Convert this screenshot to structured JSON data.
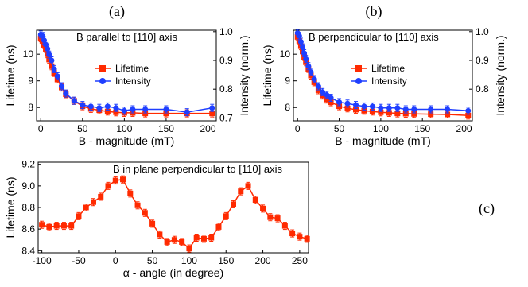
{
  "colors": {
    "lifetime": "#ff2a00",
    "intensity": "#1f3fff",
    "axis": "#000000"
  },
  "chart_data": [
    {
      "id": "a",
      "panel_label": "(a)",
      "type": "line",
      "annotation": "B parallel to [110] axis",
      "xlabel": "B - magnitude (mT)",
      "ylabel": "Lifetime (ns)",
      "y2label": "Intensity (norm.)",
      "xlim": [
        -5,
        210
      ],
      "ylim": [
        7.5,
        10.9
      ],
      "y2lim": [
        0.69,
        1.005
      ],
      "xticks": [
        0,
        50,
        100,
        150,
        200
      ],
      "yticks": [
        8,
        9,
        10
      ],
      "y2ticks": [
        0.7,
        0.8,
        0.9,
        1.0
      ],
      "y2ticklabels": [
        "0.7",
        "0.8",
        "0.9",
        "1.0"
      ],
      "legend": [
        "Lifetime",
        "Intensity"
      ],
      "series": [
        {
          "name": "Lifetime",
          "axis": "left",
          "x": [
            0,
            2,
            4,
            6,
            8,
            10,
            13,
            16,
            20,
            25,
            30,
            40,
            50,
            60,
            70,
            80,
            90,
            100,
            110,
            125,
            150,
            175,
            205
          ],
          "y": [
            10.6,
            10.5,
            10.35,
            10.2,
            10.0,
            9.8,
            9.55,
            9.3,
            9.05,
            8.75,
            8.5,
            8.25,
            8.05,
            7.95,
            7.9,
            7.85,
            7.82,
            7.8,
            7.8,
            7.78,
            7.78,
            7.78,
            7.78
          ]
        },
        {
          "name": "Intensity",
          "axis": "right",
          "x": [
            0,
            2,
            4,
            6,
            8,
            10,
            13,
            16,
            20,
            25,
            30,
            40,
            50,
            60,
            70,
            80,
            90,
            100,
            110,
            125,
            150,
            175,
            205
          ],
          "y": [
            0.99,
            0.985,
            0.97,
            0.955,
            0.94,
            0.92,
            0.9,
            0.87,
            0.845,
            0.81,
            0.785,
            0.76,
            0.745,
            0.74,
            0.735,
            0.74,
            0.735,
            0.725,
            0.73,
            0.73,
            0.73,
            0.72,
            0.735
          ]
        }
      ]
    },
    {
      "id": "b",
      "panel_label": "(b)",
      "type": "line",
      "annotation": "B perpendicular to [110] axis",
      "xlabel": "B - magnitude (mT)",
      "ylabel": "Lifetime (ns)",
      "y2label": "Intensity (norm.)",
      "xlim": [
        -5,
        210
      ],
      "ylim": [
        7.5,
        10.9
      ],
      "y2lim": [
        0.69,
        1.005
      ],
      "xticks": [
        0,
        50,
        100,
        150,
        200
      ],
      "yticks": [
        8,
        9,
        10
      ],
      "y2ticks": [
        0.8,
        0.9,
        1.0
      ],
      "y2ticklabels": [
        "0.8",
        "0.9",
        "1.0"
      ],
      "legend": [
        "Lifetime",
        "Intensity"
      ],
      "series": [
        {
          "name": "Lifetime",
          "axis": "left",
          "x": [
            0,
            2,
            4,
            6,
            8,
            10,
            13,
            16,
            20,
            25,
            30,
            35,
            40,
            50,
            60,
            70,
            80,
            90,
            100,
            110,
            120,
            130,
            140,
            160,
            180,
            205
          ],
          "y": [
            10.65,
            10.5,
            10.3,
            10.1,
            9.9,
            9.7,
            9.45,
            9.2,
            8.95,
            8.65,
            8.45,
            8.3,
            8.2,
            8.05,
            7.97,
            7.92,
            7.88,
            7.85,
            7.82,
            7.8,
            7.78,
            7.77,
            7.76,
            7.75,
            7.74,
            7.7
          ]
        },
        {
          "name": "Intensity",
          "axis": "right",
          "x": [
            0,
            2,
            4,
            6,
            8,
            10,
            13,
            16,
            20,
            25,
            30,
            35,
            40,
            50,
            60,
            70,
            80,
            90,
            100,
            110,
            120,
            130,
            140,
            160,
            180,
            205
          ],
          "y": [
            0.995,
            0.985,
            0.965,
            0.945,
            0.925,
            0.905,
            0.88,
            0.86,
            0.835,
            0.81,
            0.79,
            0.78,
            0.77,
            0.755,
            0.75,
            0.745,
            0.74,
            0.74,
            0.735,
            0.735,
            0.735,
            0.73,
            0.73,
            0.73,
            0.73,
            0.725
          ]
        }
      ]
    },
    {
      "id": "c",
      "panel_label": "(c)",
      "type": "line",
      "annotation": "B in plane perpendicular to [110] axis",
      "xlabel": "α - angle (in degree)",
      "ylabel": "Lifetime (ns)",
      "xlim": [
        -105,
        262
      ],
      "ylim": [
        8.38,
        9.22
      ],
      "xticks": [
        -100,
        -50,
        0,
        50,
        100,
        150,
        200,
        250
      ],
      "yticks": [
        8.4,
        8.6,
        8.8,
        9.0,
        9.2
      ],
      "yticklabels": [
        "8.4",
        "8.6",
        "8.8",
        "9.0",
        "9.2"
      ],
      "series": [
        {
          "name": "Lifetime",
          "x": [
            -100,
            -90,
            -80,
            -70,
            -60,
            -50,
            -40,
            -30,
            -20,
            -10,
            0,
            10,
            20,
            30,
            40,
            50,
            60,
            70,
            80,
            90,
            100,
            110,
            120,
            130,
            140,
            150,
            160,
            170,
            180,
            190,
            200,
            210,
            220,
            230,
            240,
            250,
            260
          ],
          "y": [
            8.64,
            8.62,
            8.63,
            8.63,
            8.63,
            8.72,
            8.8,
            8.85,
            8.9,
            9.0,
            9.05,
            9.06,
            8.93,
            8.82,
            8.75,
            8.65,
            8.55,
            8.48,
            8.5,
            8.48,
            8.42,
            8.52,
            8.51,
            8.52,
            8.62,
            8.72,
            8.83,
            8.95,
            9.0,
            8.87,
            8.79,
            8.71,
            8.7,
            8.63,
            8.56,
            8.53,
            8.51
          ]
        }
      ]
    }
  ]
}
